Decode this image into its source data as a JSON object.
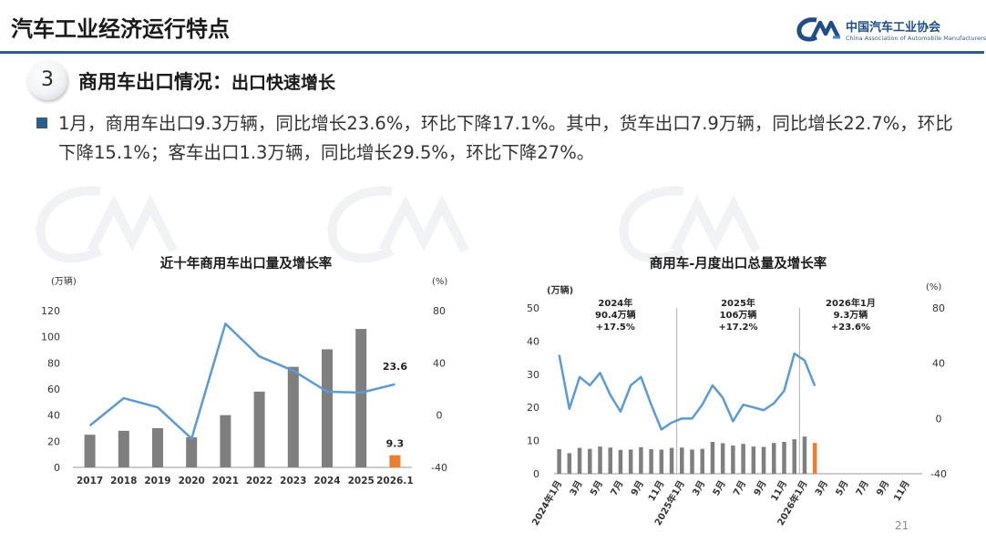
{
  "header": {
    "title": "汽车工业经济运行特点",
    "logo_cn": "中国汽车工业协会",
    "logo_en": "China Association of Automobile Manufacturers"
  },
  "section": {
    "number": "3",
    "title": "商用车出口情况：",
    "subtitle": "出口快速增长"
  },
  "bullet": {
    "text": "1月，商用车出口9.3万辆，同比增长23.6%，环比下降17.1%。其中，货车出口7.9万辆，同比增长22.7%，环比下降15.1%；客车出口1.3万辆，同比增长29.5%，环比下降27%。"
  },
  "page_number": "21",
  "colors": {
    "bar": "#7f7f7f",
    "bar_highlight": "#ed7d31",
    "line": "#5b9bd5",
    "accent": "#2a5c9a"
  },
  "chart_data": [
    {
      "type": "bar",
      "title": "近十年商用车出口量及增长率",
      "ylabel_left": "(万辆)",
      "ylabel_right": "(%)",
      "categories": [
        "2017",
        "2018",
        "2019",
        "2020",
        "2021",
        "2022",
        "2023",
        "2024",
        "2025",
        "2026.1"
      ],
      "ylim": [
        0,
        120
      ],
      "yticks": [
        0,
        20,
        40,
        60,
        80,
        100,
        120
      ],
      "y2lim": [
        -40,
        80
      ],
      "y2ticks": [
        -40,
        0,
        40,
        80
      ],
      "series": [
        {
          "type": "bar",
          "axis": "left",
          "values": [
            25,
            28,
            30,
            23,
            40,
            58,
            77,
            90.4,
            106,
            9.3
          ]
        },
        {
          "type": "line",
          "axis": "right",
          "values": [
            -8,
            13,
            6,
            -18,
            70,
            45,
            34,
            18,
            17.2,
            23.6
          ]
        }
      ],
      "annotations": [
        {
          "category": "2026.1",
          "series": "bar",
          "text": "9.3"
        },
        {
          "category": "2026.1",
          "series": "line",
          "text": "23.6"
        }
      ],
      "grid": false,
      "legend": "none"
    },
    {
      "type": "bar",
      "title": "商用车-月度出口总量及增长率",
      "ylabel_left": "(万辆)",
      "ylabel_right": "(%)",
      "x_tick_labels": [
        "2024年1月",
        "3月",
        "5月",
        "7月",
        "9月",
        "11月",
        "2025年1月",
        "3月",
        "5月",
        "7月",
        "9月",
        "11月",
        "2026年1月",
        "3月",
        "5月",
        "7月",
        "9月",
        "11月"
      ],
      "x_count": 36,
      "ylim": [
        0,
        50
      ],
      "yticks": [
        0,
        10,
        20,
        30,
        40,
        50
      ],
      "y2lim": [
        -40,
        80
      ],
      "y2ticks": [
        -40,
        0,
        40,
        80
      ],
      "series": [
        {
          "type": "bar",
          "axis": "left",
          "values": [
            7.4,
            6.2,
            7.8,
            7.5,
            8.2,
            7.9,
            7.2,
            7.3,
            8.0,
            7.4,
            7.3,
            7.8,
            7.9,
            7.3,
            7.5,
            9.6,
            9.2,
            8.5,
            9.0,
            8.2,
            8.1,
            9.3,
            9.6,
            10.4,
            11.2,
            9.3
          ]
        },
        {
          "type": "line",
          "axis": "right",
          "values": [
            46,
            7,
            30,
            24,
            33,
            17,
            5,
            24,
            30,
            10,
            -8,
            -3,
            0,
            0,
            10,
            24,
            15,
            -2,
            10,
            8,
            6,
            11,
            20,
            47,
            42,
            23.6
          ]
        }
      ],
      "annotations": [
        {
          "text": "2024年",
          "sub": "90.4万辆",
          "rate": "+17.5%"
        },
        {
          "text": "2025年",
          "sub": "106万辆",
          "rate": "+17.2%"
        },
        {
          "text": "2026年1月",
          "sub": "9.3万辆",
          "rate": "+23.6%"
        }
      ],
      "grid": false,
      "legend": "none"
    }
  ]
}
